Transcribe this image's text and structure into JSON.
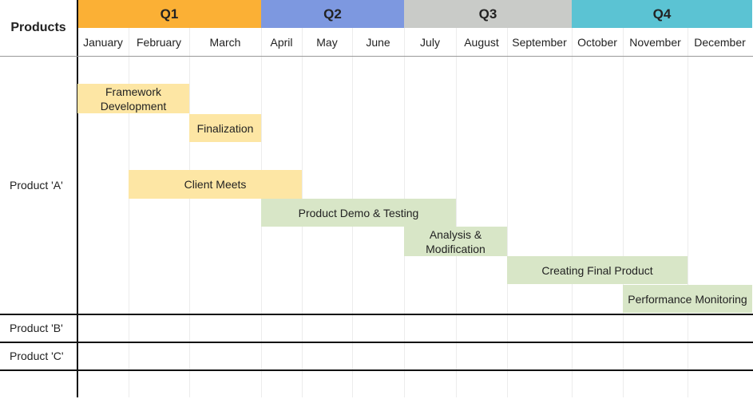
{
  "header": {
    "products_label": "Products"
  },
  "chart_data": {
    "type": "gantt",
    "quarters": [
      {
        "label": "Q1",
        "start": 0,
        "end": 3,
        "color": "#fbb035"
      },
      {
        "label": "Q2",
        "start": 3,
        "end": 6,
        "color": "#7d98e0"
      },
      {
        "label": "Q3",
        "start": 6,
        "end": 9,
        "color": "#c9cbc8"
      },
      {
        "label": "Q4",
        "start": 9,
        "end": 12,
        "color": "#5bc3d3"
      }
    ],
    "months": [
      "January",
      "February",
      "March",
      "April",
      "May",
      "June",
      "July",
      "August",
      "September",
      "October",
      "November",
      "December"
    ],
    "products": [
      {
        "label": "Product 'A'"
      },
      {
        "label": "Product 'B'"
      },
      {
        "label": "Product 'C'"
      }
    ],
    "tasks": [
      {
        "name": "Framework Development",
        "product": "Product 'A'",
        "start_month": "January",
        "start": 0,
        "end": 2,
        "color": "#fde6a4"
      },
      {
        "name": "Finalization",
        "product": "Product 'A'",
        "start_month": "March",
        "start": 2,
        "end": 3,
        "color": "#fde6a4"
      },
      {
        "name": "Client Meets",
        "product": "Product 'A'",
        "start_month": "February",
        "start": 1,
        "end": 4,
        "color": "#fde6a4"
      },
      {
        "name": "Product Demo & Testing",
        "product": "Product 'A'",
        "start_month": "April",
        "start": 3,
        "end": 7,
        "color": "#d8e6c7"
      },
      {
        "name": "Analysis & Modification",
        "product": "Product 'A'",
        "start_month": "July",
        "start": 6,
        "end": 8,
        "color": "#d8e6c7"
      },
      {
        "name": "Creating Final Product",
        "product": "Product 'A'",
        "start_month": "September",
        "start": 8,
        "end": 11,
        "color": "#d8e6c7"
      },
      {
        "name": "Performance Monitoring",
        "product": "Product 'A'",
        "start_month": "November",
        "start": 10,
        "end": 12,
        "color": "#d8e6c7"
      }
    ]
  }
}
